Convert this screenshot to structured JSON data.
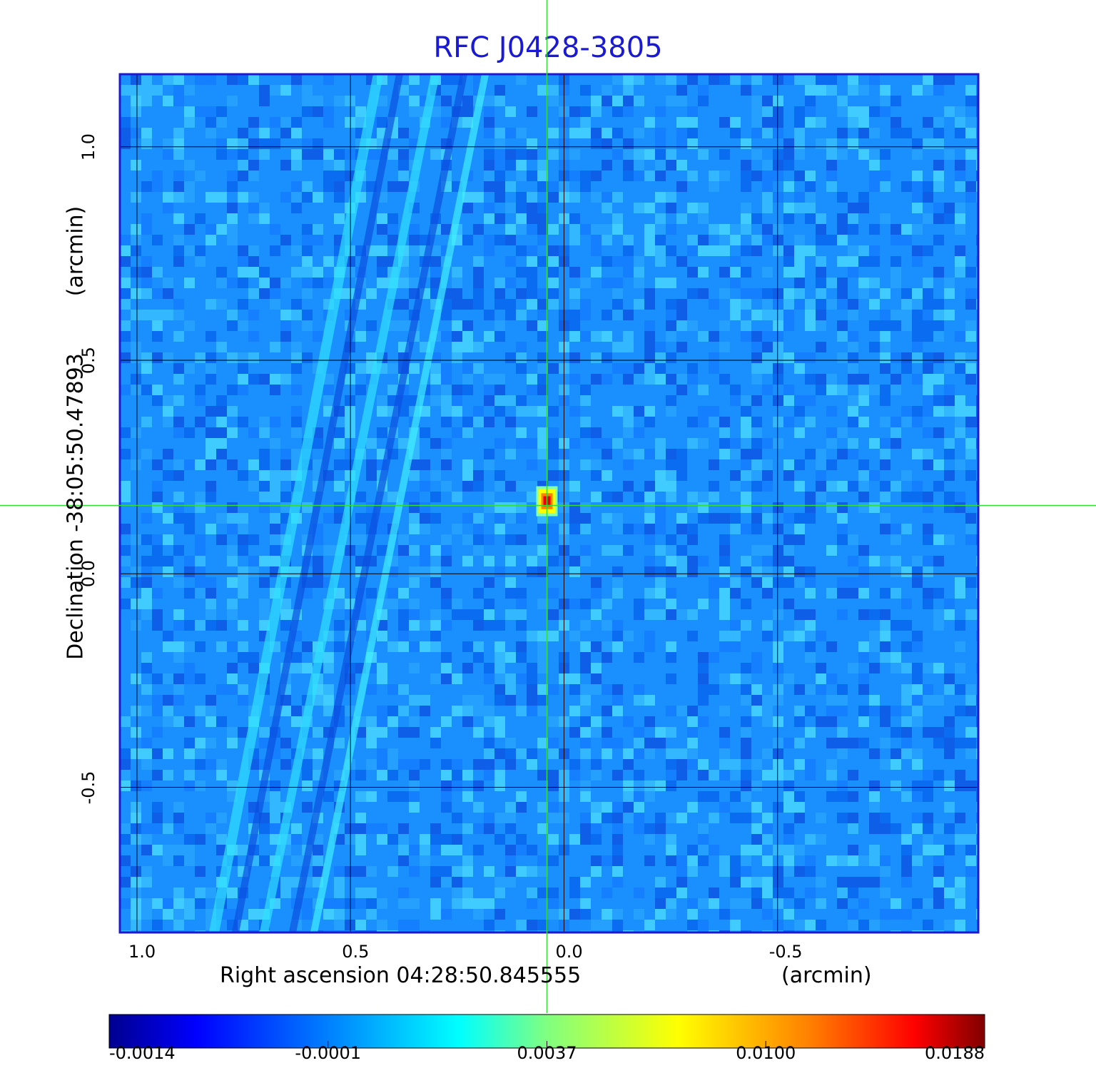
{
  "chart_data": {
    "type": "heatmap",
    "title": "RFC J0428-3805",
    "xlabel": "Right ascension  04:28:50.845555",
    "xunit": "(arcmin)",
    "ylabel": "Declination  -38:05:50.47893",
    "yunit": "(arcmin)",
    "x_ticks": [
      "1.0",
      "0.5",
      "0.0",
      "-0.5"
    ],
    "x_tick_values": [
      1.0,
      0.5,
      0.0,
      -0.5
    ],
    "y_ticks": [
      "1.0",
      "0.5",
      "0.0",
      "-0.5"
    ],
    "y_tick_values": [
      1.0,
      0.5,
      0.0,
      -0.5
    ],
    "xlim": [
      1.04,
      -0.97
    ],
    "ylim": [
      -0.84,
      1.17
    ],
    "grid": true,
    "crosshair": {
      "x": 0.04,
      "y": 0.16,
      "color": "#33dd33"
    },
    "source_peak": {
      "x": 0.04,
      "y": 0.17,
      "value": 0.0188
    },
    "colorbar": {
      "ticks": [
        "-0.0014",
        "-0.0001",
        "0.0037",
        "0.0100",
        "0.0188"
      ],
      "tick_values": [
        -0.0014,
        -0.0001,
        0.0037,
        0.01,
        0.0188
      ],
      "colormap": "jet",
      "colors": [
        "#00008f",
        "#0000ff",
        "#00ffff",
        "#ffff00",
        "#ff0000",
        "#800000"
      ]
    },
    "background_color": "#1a90ff",
    "frame_color": "#1a1ad6"
  }
}
